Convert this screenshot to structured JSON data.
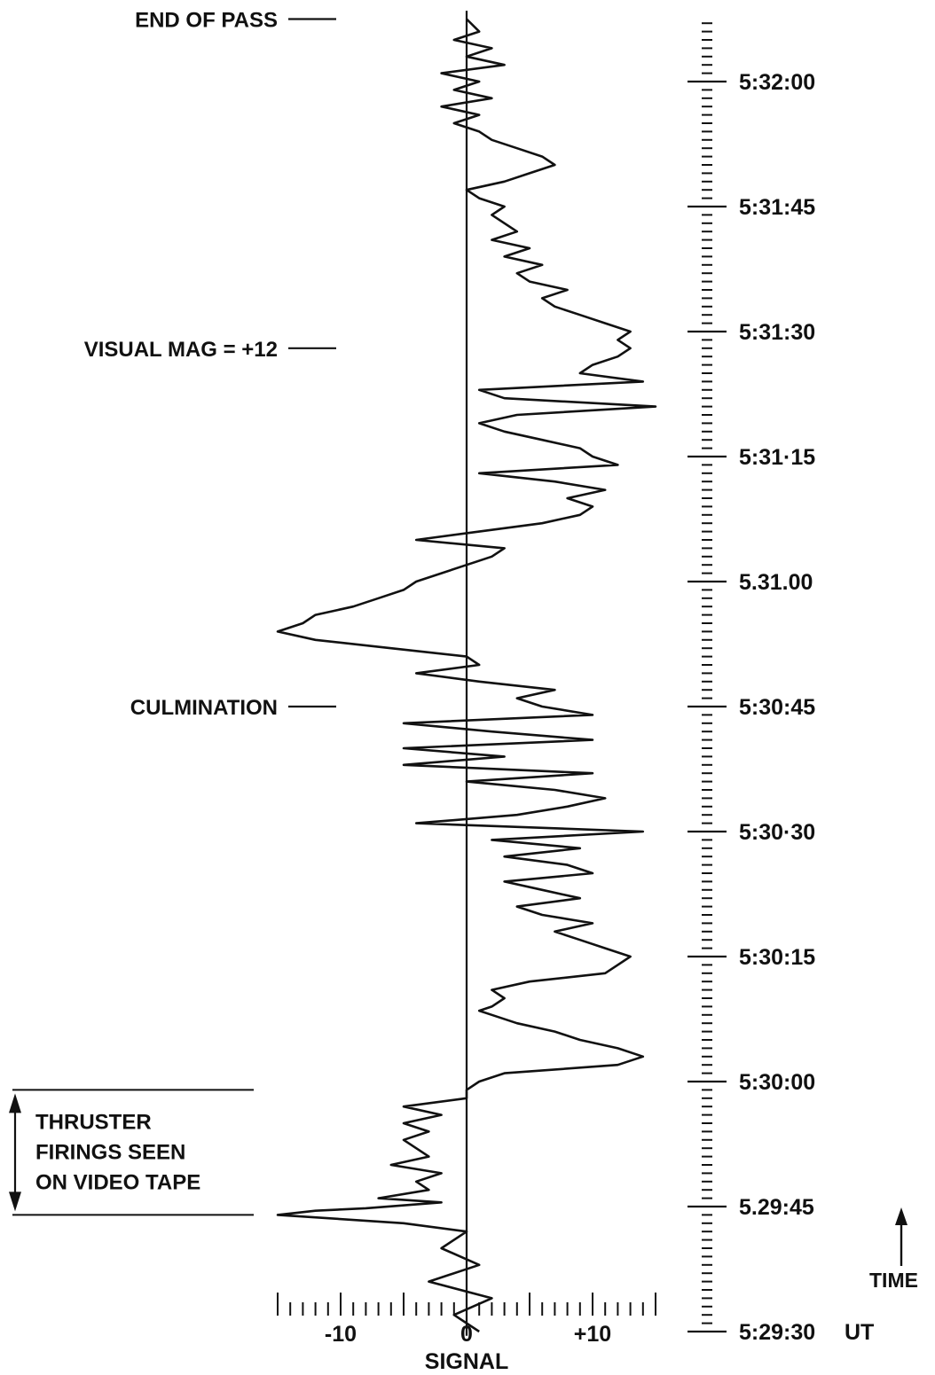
{
  "chart_data": {
    "type": "line",
    "orientation": "vertical-time",
    "x_axis": {
      "label": "SIGNAL",
      "range": [
        -15,
        15
      ],
      "ticks": [
        {
          "value": -10,
          "label": "-10"
        },
        {
          "value": 0,
          "label": "0"
        },
        {
          "value": 10,
          "label": "+10"
        }
      ]
    },
    "time_axis": {
      "range_seconds": [
        0,
        150
      ],
      "unit_label": "UT",
      "direction_label": "TIME",
      "ticks": [
        {
          "t": 0,
          "label": "5:29:30"
        },
        {
          "t": 15,
          "label": "5.29:45"
        },
        {
          "t": 30,
          "label": "5:30:00"
        },
        {
          "t": 45,
          "label": "5:30:15"
        },
        {
          "t": 60,
          "label": "5:30·30"
        },
        {
          "t": 75,
          "label": "5:30:45"
        },
        {
          "t": 90,
          "label": "5.31.00"
        },
        {
          "t": 105,
          "label": "5:31·15"
        },
        {
          "t": 120,
          "label": "5:31:30"
        },
        {
          "t": 135,
          "label": "5:31:45"
        },
        {
          "t": 150,
          "label": "5:32:00"
        }
      ]
    },
    "annotations": [
      {
        "text": "END OF PASS",
        "t": 157.5
      },
      {
        "text": "VISUAL MAG  = +12",
        "t": 118
      },
      {
        "text": "CULMINATION",
        "t": 75
      },
      {
        "text": "THRUSTER",
        "t_start": 14,
        "t_end": 29
      },
      {
        "text": "FIRINGS SEEN",
        "t_start": 14,
        "t_end": 29
      },
      {
        "text": "ON VIDEO TAPE",
        "t_start": 14,
        "t_end": 29
      }
    ],
    "series": [
      {
        "points": [
          [
            1,
            0
          ],
          [
            -1,
            2
          ],
          [
            2,
            4
          ],
          [
            -3,
            6
          ],
          [
            1,
            8
          ],
          [
            -2,
            10
          ],
          [
            0,
            12
          ],
          [
            -5,
            13
          ],
          [
            -15,
            14
          ],
          [
            -12,
            14.5
          ],
          [
            -8,
            14.8
          ],
          [
            -2,
            15.5
          ],
          [
            -7,
            16
          ],
          [
            -3,
            17
          ],
          [
            -4,
            18
          ],
          [
            -2,
            19
          ],
          [
            -6,
            20
          ],
          [
            -3,
            21
          ],
          [
            -4,
            22
          ],
          [
            -5,
            23
          ],
          [
            -3,
            24
          ],
          [
            -5,
            25
          ],
          [
            -2,
            26
          ],
          [
            -5,
            27
          ],
          [
            0,
            28
          ],
          [
            0,
            29
          ],
          [
            1,
            30
          ],
          [
            3,
            31
          ],
          [
            12,
            32
          ],
          [
            14,
            33
          ],
          [
            12,
            34
          ],
          [
            9,
            35
          ],
          [
            7,
            36
          ],
          [
            4,
            37
          ],
          [
            2,
            38
          ],
          [
            1,
            38.5
          ],
          [
            2,
            39
          ],
          [
            3,
            40
          ],
          [
            2,
            41
          ],
          [
            5,
            42
          ],
          [
            11,
            43
          ],
          [
            12,
            44
          ],
          [
            13,
            45
          ],
          [
            11,
            46
          ],
          [
            9,
            47
          ],
          [
            7,
            48
          ],
          [
            10,
            49
          ],
          [
            6,
            50
          ],
          [
            4,
            51
          ],
          [
            9,
            52
          ],
          [
            6,
            53
          ],
          [
            3,
            54
          ],
          [
            10,
            55
          ],
          [
            8,
            56
          ],
          [
            3,
            57
          ],
          [
            9,
            58
          ],
          [
            2,
            59
          ],
          [
            14,
            60
          ],
          [
            -4,
            61
          ],
          [
            4,
            62
          ],
          [
            8,
            63
          ],
          [
            11,
            64
          ],
          [
            7,
            65
          ],
          [
            0,
            66
          ],
          [
            10,
            67
          ],
          [
            -5,
            68
          ],
          [
            3,
            69
          ],
          [
            -5,
            70
          ],
          [
            10,
            71
          ],
          [
            2,
            72
          ],
          [
            -5,
            73
          ],
          [
            10,
            74
          ],
          [
            6,
            75
          ],
          [
            4,
            76
          ],
          [
            7,
            77
          ],
          [
            1,
            78
          ],
          [
            -4,
            79
          ],
          [
            1,
            80
          ],
          [
            0,
            81
          ],
          [
            -6,
            82
          ],
          [
            -12,
            83
          ],
          [
            -15,
            84
          ],
          [
            -13,
            85
          ],
          [
            -12,
            86
          ],
          [
            -9,
            87
          ],
          [
            -7,
            88
          ],
          [
            -5,
            89
          ],
          [
            -4,
            90
          ],
          [
            -2,
            91
          ],
          [
            0,
            92
          ],
          [
            2,
            93
          ],
          [
            3,
            94
          ],
          [
            -4,
            95
          ],
          [
            1,
            96
          ],
          [
            6,
            97
          ],
          [
            9,
            98
          ],
          [
            10,
            99
          ],
          [
            8,
            100
          ],
          [
            11,
            101
          ],
          [
            7,
            102
          ],
          [
            1,
            103
          ],
          [
            12,
            104
          ],
          [
            10,
            105
          ],
          [
            9,
            106
          ],
          [
            6,
            107
          ],
          [
            3,
            108
          ],
          [
            1,
            109
          ],
          [
            4,
            110
          ],
          [
            15,
            111
          ],
          [
            3,
            112
          ],
          [
            1,
            113
          ],
          [
            14,
            114
          ],
          [
            9,
            115
          ],
          [
            10,
            116
          ],
          [
            12,
            117
          ],
          [
            13,
            118
          ],
          [
            12,
            119
          ],
          [
            13,
            120
          ],
          [
            11,
            121
          ],
          [
            9,
            122
          ],
          [
            7,
            123
          ],
          [
            6,
            124
          ],
          [
            8,
            125
          ],
          [
            5,
            126
          ],
          [
            4,
            127
          ],
          [
            6,
            128
          ],
          [
            3,
            129
          ],
          [
            5,
            130
          ],
          [
            2,
            131
          ],
          [
            4,
            132
          ],
          [
            3,
            133
          ],
          [
            2,
            134
          ],
          [
            3,
            135
          ],
          [
            1,
            136
          ],
          [
            0,
            137
          ],
          [
            3,
            138
          ],
          [
            5,
            139
          ],
          [
            7,
            140
          ],
          [
            6,
            141
          ],
          [
            4,
            142
          ],
          [
            2,
            143
          ],
          [
            1,
            144
          ],
          [
            -1,
            145
          ],
          [
            1,
            146
          ],
          [
            -2,
            147
          ],
          [
            2,
            148
          ],
          [
            -1,
            149
          ],
          [
            1,
            150
          ],
          [
            -2,
            151
          ],
          [
            3,
            152
          ],
          [
            0,
            153
          ],
          [
            2,
            154
          ],
          [
            -1,
            155
          ],
          [
            1,
            156
          ],
          [
            0,
            157.5
          ]
        ]
      }
    ]
  }
}
